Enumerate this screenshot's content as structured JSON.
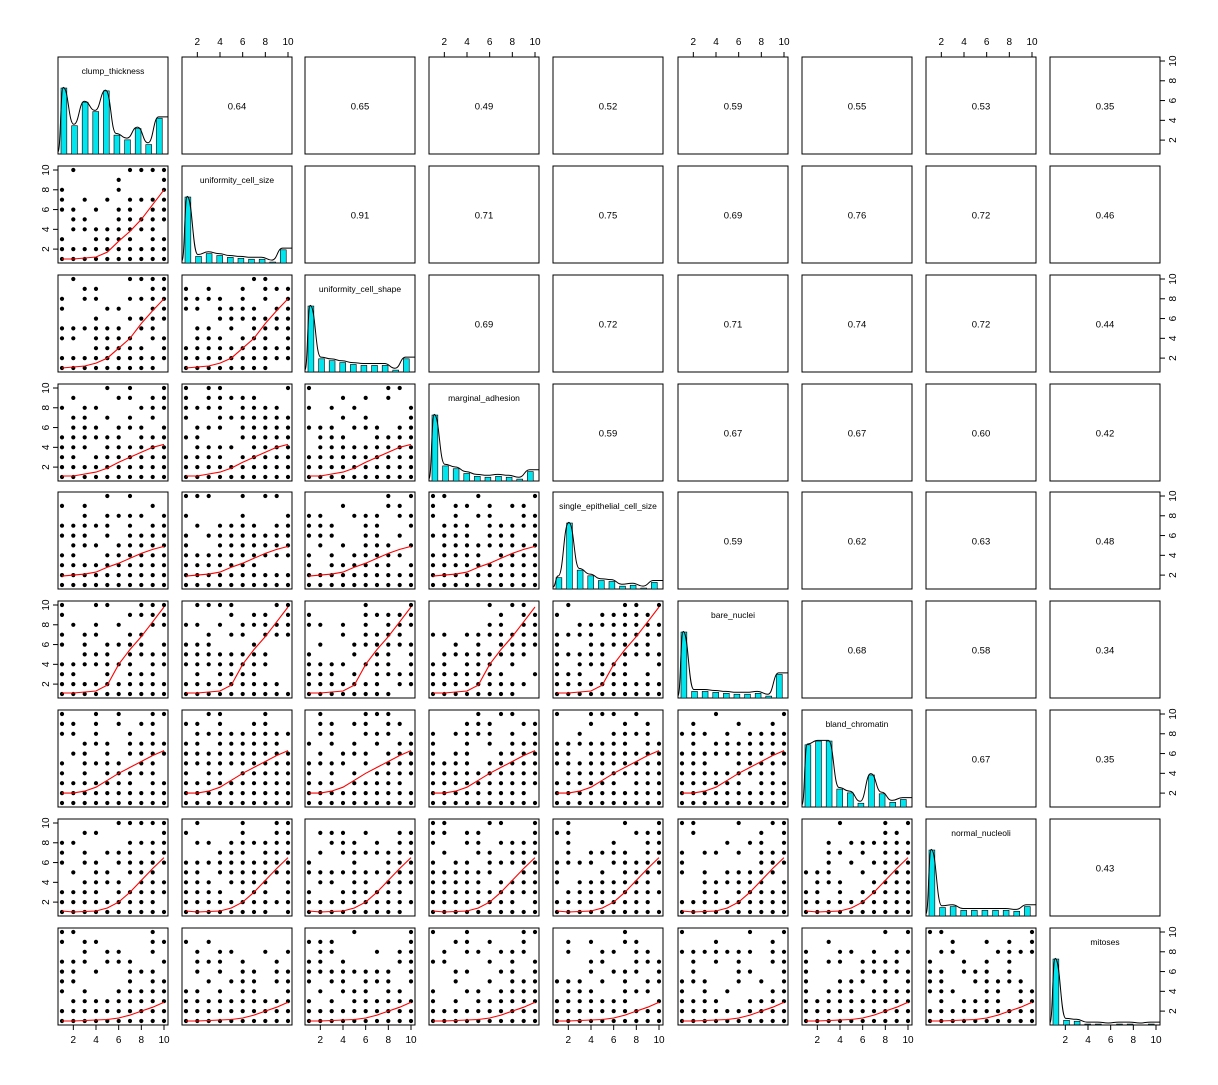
{
  "chart_data": {
    "type": "scatter",
    "title": "",
    "variables": [
      "clump_thickness",
      "uniformity_cell_size",
      "uniformity_cell_shape",
      "marginal_adhesion",
      "single_epithelial_cell_size",
      "bare_nuclei",
      "bland_chromatin",
      "normal_nucleoli",
      "mitoses"
    ],
    "correlations": [
      [
        "",
        "0.64",
        "0.65",
        "0.49",
        "0.52",
        "0.59",
        "0.55",
        "0.53",
        "0.35"
      ],
      [
        "",
        "",
        "0.91",
        "0.71",
        "0.75",
        "0.69",
        "0.76",
        "0.72",
        "0.46"
      ],
      [
        "",
        "",
        "",
        "0.69",
        "0.72",
        "0.71",
        "0.74",
        "0.72",
        "0.44"
      ],
      [
        "",
        "",
        "",
        "",
        "0.59",
        "0.67",
        "0.67",
        "0.60",
        "0.42"
      ],
      [
        "",
        "",
        "",
        "",
        "",
        "0.59",
        "0.62",
        "0.63",
        "0.48"
      ],
      [
        "",
        "",
        "",
        "",
        "",
        "",
        "0.68",
        "0.58",
        "0.34"
      ],
      [
        "",
        "",
        "",
        "",
        "",
        "",
        "",
        "0.67",
        "0.35"
      ],
      [
        "",
        "",
        "",
        "",
        "",
        "",
        "",
        "",
        "0.43"
      ],
      [
        "",
        "",
        "",
        "",
        "",
        "",
        "",
        "",
        ""
      ]
    ],
    "histograms": [
      [
        0.7,
        0.3,
        0.55,
        0.45,
        0.67,
        0.2,
        0.15,
        0.27,
        0.1,
        0.38
      ],
      [
        0.7,
        0.07,
        0.1,
        0.08,
        0.06,
        0.05,
        0.04,
        0.04,
        0.01,
        0.14
      ],
      [
        0.7,
        0.14,
        0.12,
        0.1,
        0.08,
        0.07,
        0.07,
        0.07,
        0.02,
        0.14
      ],
      [
        0.7,
        0.16,
        0.13,
        0.08,
        0.05,
        0.04,
        0.05,
        0.04,
        0.02,
        0.1
      ],
      [
        0.12,
        0.7,
        0.2,
        0.14,
        0.09,
        0.08,
        0.03,
        0.04,
        0.01,
        0.07
      ],
      [
        0.7,
        0.07,
        0.07,
        0.06,
        0.05,
        0.04,
        0.04,
        0.05,
        0.02,
        0.25
      ],
      [
        0.66,
        0.7,
        0.7,
        0.19,
        0.15,
        0.04,
        0.34,
        0.14,
        0.05,
        0.08
      ],
      [
        0.7,
        0.09,
        0.1,
        0.06,
        0.06,
        0.06,
        0.06,
        0.06,
        0.05,
        0.1
      ],
      [
        0.7,
        0.05,
        0.04,
        0.01,
        0.01,
        0.0,
        0.01,
        0.01,
        0.0,
        0.01
      ]
    ],
    "lowess": [
      [],
      [
        [
          1,
          1
        ],
        [
          2,
          1
        ],
        [
          3,
          1.1
        ],
        [
          4,
          1.2
        ],
        [
          5,
          1.7
        ],
        [
          6,
          2.8
        ],
        [
          7,
          3.8
        ],
        [
          8,
          5
        ],
        [
          9,
          6.5
        ],
        [
          10,
          8
        ]
      ],
      [
        [
          1,
          1
        ],
        [
          2,
          1.1
        ],
        [
          3,
          1.2
        ],
        [
          4,
          1.5
        ],
        [
          5,
          2
        ],
        [
          6,
          3
        ],
        [
          7,
          4
        ],
        [
          8,
          5.5
        ],
        [
          9,
          6.8
        ],
        [
          10,
          8
        ]
      ],
      [
        [
          1,
          1.1
        ],
        [
          2,
          1.1
        ],
        [
          3,
          1.3
        ],
        [
          4,
          1.5
        ],
        [
          5,
          1.9
        ],
        [
          6,
          2.5
        ],
        [
          7,
          3
        ],
        [
          8,
          3.5
        ],
        [
          9,
          4
        ],
        [
          10,
          4.3
        ]
      ],
      [
        [
          1,
          1.9
        ],
        [
          2,
          2
        ],
        [
          3,
          2.1
        ],
        [
          4,
          2.3
        ],
        [
          5,
          2.8
        ],
        [
          6,
          3.2
        ],
        [
          7,
          3.7
        ],
        [
          8,
          4.2
        ],
        [
          9,
          4.6
        ],
        [
          10,
          4.9
        ]
      ],
      [
        [
          1,
          1.1
        ],
        [
          2,
          1.1
        ],
        [
          3,
          1.2
        ],
        [
          4,
          1.3
        ],
        [
          5,
          1.9
        ],
        [
          6,
          4
        ],
        [
          7,
          5.5
        ],
        [
          8,
          6.8
        ],
        [
          9,
          8.3
        ],
        [
          10,
          9.8
        ]
      ],
      [
        [
          1,
          2
        ],
        [
          2,
          2
        ],
        [
          3,
          2.2
        ],
        [
          4,
          2.6
        ],
        [
          5,
          3.3
        ],
        [
          6,
          4
        ],
        [
          7,
          4.6
        ],
        [
          8,
          5.2
        ],
        [
          9,
          5.8
        ],
        [
          10,
          6.3
        ]
      ],
      [
        [
          1,
          1.1
        ],
        [
          2,
          1
        ],
        [
          3,
          1.05
        ],
        [
          4,
          1.1
        ],
        [
          5,
          1.4
        ],
        [
          6,
          2
        ],
        [
          7,
          3
        ],
        [
          8,
          4.2
        ],
        [
          9,
          5.4
        ],
        [
          10,
          6.5
        ]
      ],
      [
        [
          1,
          1
        ],
        [
          2,
          1
        ],
        [
          3,
          1.05
        ],
        [
          4,
          1.1
        ],
        [
          5,
          1.15
        ],
        [
          6,
          1.3
        ],
        [
          7,
          1.6
        ],
        [
          8,
          2
        ],
        [
          9,
          2.4
        ],
        [
          10,
          2.9
        ]
      ]
    ],
    "axis_ticks": [
      "2",
      "4",
      "6",
      "8",
      "10"
    ],
    "xlim": [
      1,
      10
    ],
    "ylim": [
      1,
      10
    ],
    "grid": false
  }
}
